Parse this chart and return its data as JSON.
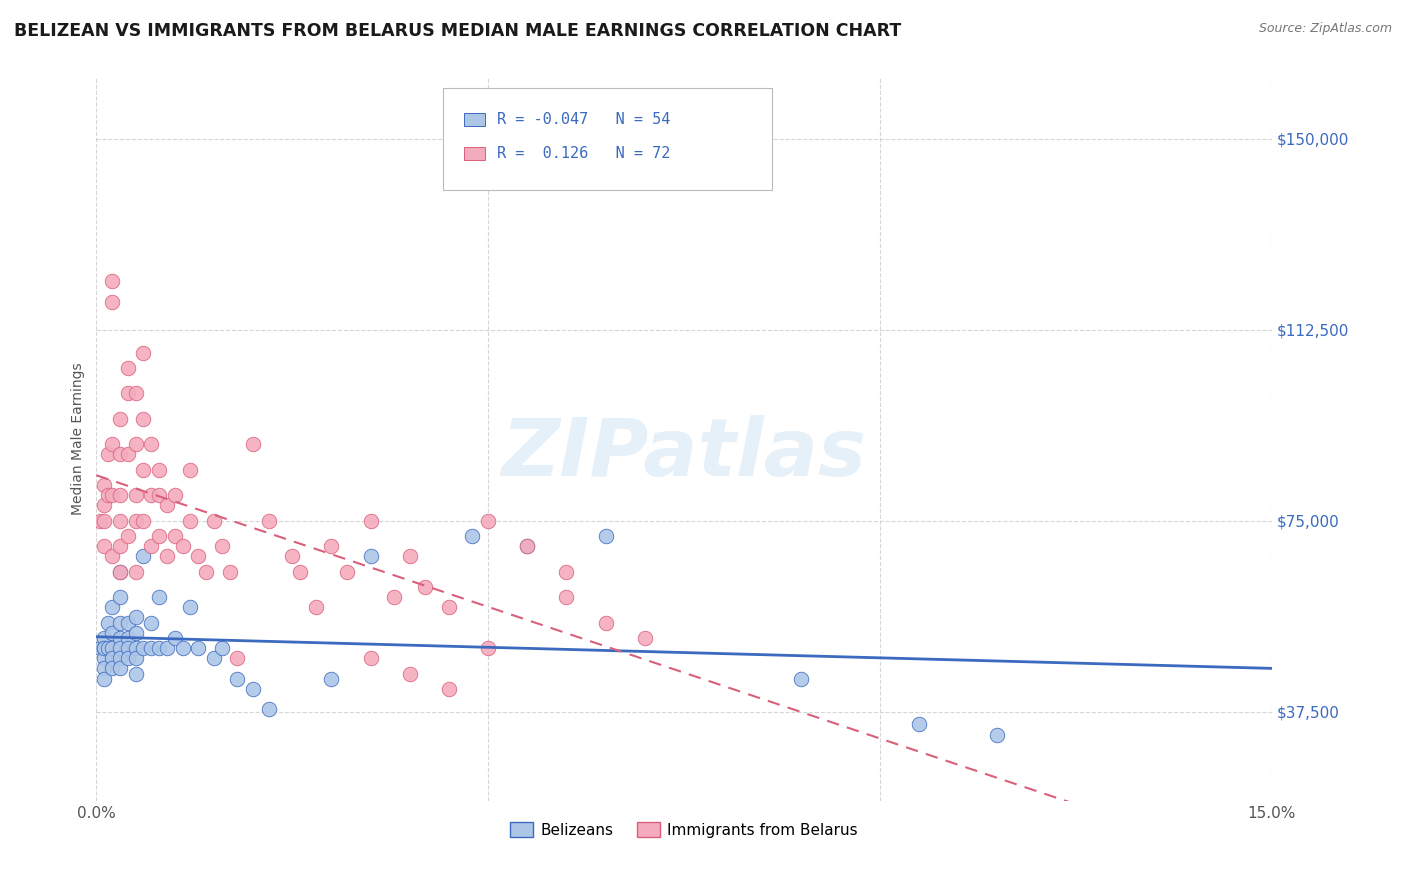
{
  "title": "BELIZEAN VS IMMIGRANTS FROM BELARUS MEDIAN MALE EARNINGS CORRELATION CHART",
  "source": "Source: ZipAtlas.com",
  "ylabel": "Median Male Earnings",
  "yticks": [
    37500,
    75000,
    112500,
    150000
  ],
  "ytick_labels": [
    "$37,500",
    "$75,000",
    "$112,500",
    "$150,000"
  ],
  "xmin": 0.0,
  "xmax": 0.15,
  "ymin": 20000,
  "ymax": 162000,
  "watermark": "ZIPatlas",
  "legend_r1_val": "-0.047",
  "legend_n1": "54",
  "legend_r2_val": "0.126",
  "legend_n2": "72",
  "belizean_color": "#adc6e8",
  "belarus_color": "#f4abbe",
  "belizean_line_color": "#3b6abf",
  "belarus_line_color": "#d9607a",
  "legend_label1": "Belizeans",
  "legend_label2": "Immigrants from Belarus",
  "belizean_x": [
    0.0005,
    0.001,
    0.001,
    0.001,
    0.001,
    0.001,
    0.001,
    0.0015,
    0.0015,
    0.002,
    0.002,
    0.002,
    0.002,
    0.002,
    0.003,
    0.003,
    0.003,
    0.003,
    0.003,
    0.003,
    0.003,
    0.004,
    0.004,
    0.004,
    0.004,
    0.005,
    0.005,
    0.005,
    0.005,
    0.005,
    0.006,
    0.006,
    0.007,
    0.007,
    0.008,
    0.008,
    0.009,
    0.01,
    0.011,
    0.012,
    0.013,
    0.015,
    0.016,
    0.018,
    0.02,
    0.022,
    0.03,
    0.035,
    0.048,
    0.055,
    0.065,
    0.09,
    0.105,
    0.115
  ],
  "belizean_y": [
    50000,
    52000,
    50000,
    48000,
    46000,
    44000,
    50000,
    55000,
    50000,
    58000,
    53000,
    50000,
    48000,
    46000,
    65000,
    60000,
    55000,
    52000,
    50000,
    48000,
    46000,
    55000,
    52000,
    50000,
    48000,
    56000,
    53000,
    50000,
    48000,
    45000,
    68000,
    50000,
    55000,
    50000,
    60000,
    50000,
    50000,
    52000,
    50000,
    58000,
    50000,
    48000,
    50000,
    44000,
    42000,
    38000,
    44000,
    68000,
    72000,
    70000,
    72000,
    44000,
    35000,
    33000
  ],
  "belarus_x": [
    0.0005,
    0.001,
    0.001,
    0.001,
    0.001,
    0.0015,
    0.0015,
    0.002,
    0.002,
    0.002,
    0.002,
    0.002,
    0.003,
    0.003,
    0.003,
    0.003,
    0.003,
    0.003,
    0.004,
    0.004,
    0.004,
    0.004,
    0.005,
    0.005,
    0.005,
    0.005,
    0.005,
    0.006,
    0.006,
    0.006,
    0.006,
    0.007,
    0.007,
    0.007,
    0.008,
    0.008,
    0.008,
    0.009,
    0.009,
    0.01,
    0.01,
    0.011,
    0.012,
    0.012,
    0.013,
    0.014,
    0.015,
    0.016,
    0.017,
    0.018,
    0.02,
    0.022,
    0.025,
    0.026,
    0.028,
    0.03,
    0.032,
    0.035,
    0.038,
    0.04,
    0.042,
    0.045,
    0.05,
    0.055,
    0.06,
    0.035,
    0.04,
    0.045,
    0.05,
    0.06,
    0.065,
    0.07
  ],
  "belarus_y": [
    75000,
    82000,
    78000,
    75000,
    70000,
    88000,
    80000,
    122000,
    118000,
    90000,
    80000,
    68000,
    95000,
    88000,
    80000,
    75000,
    70000,
    65000,
    105000,
    100000,
    88000,
    72000,
    100000,
    90000,
    80000,
    75000,
    65000,
    108000,
    95000,
    85000,
    75000,
    90000,
    80000,
    70000,
    85000,
    80000,
    72000,
    78000,
    68000,
    80000,
    72000,
    70000,
    85000,
    75000,
    68000,
    65000,
    75000,
    70000,
    65000,
    48000,
    90000,
    75000,
    68000,
    65000,
    58000,
    70000,
    65000,
    75000,
    60000,
    68000,
    62000,
    58000,
    75000,
    70000,
    65000,
    48000,
    45000,
    42000,
    50000,
    60000,
    55000,
    52000
  ]
}
